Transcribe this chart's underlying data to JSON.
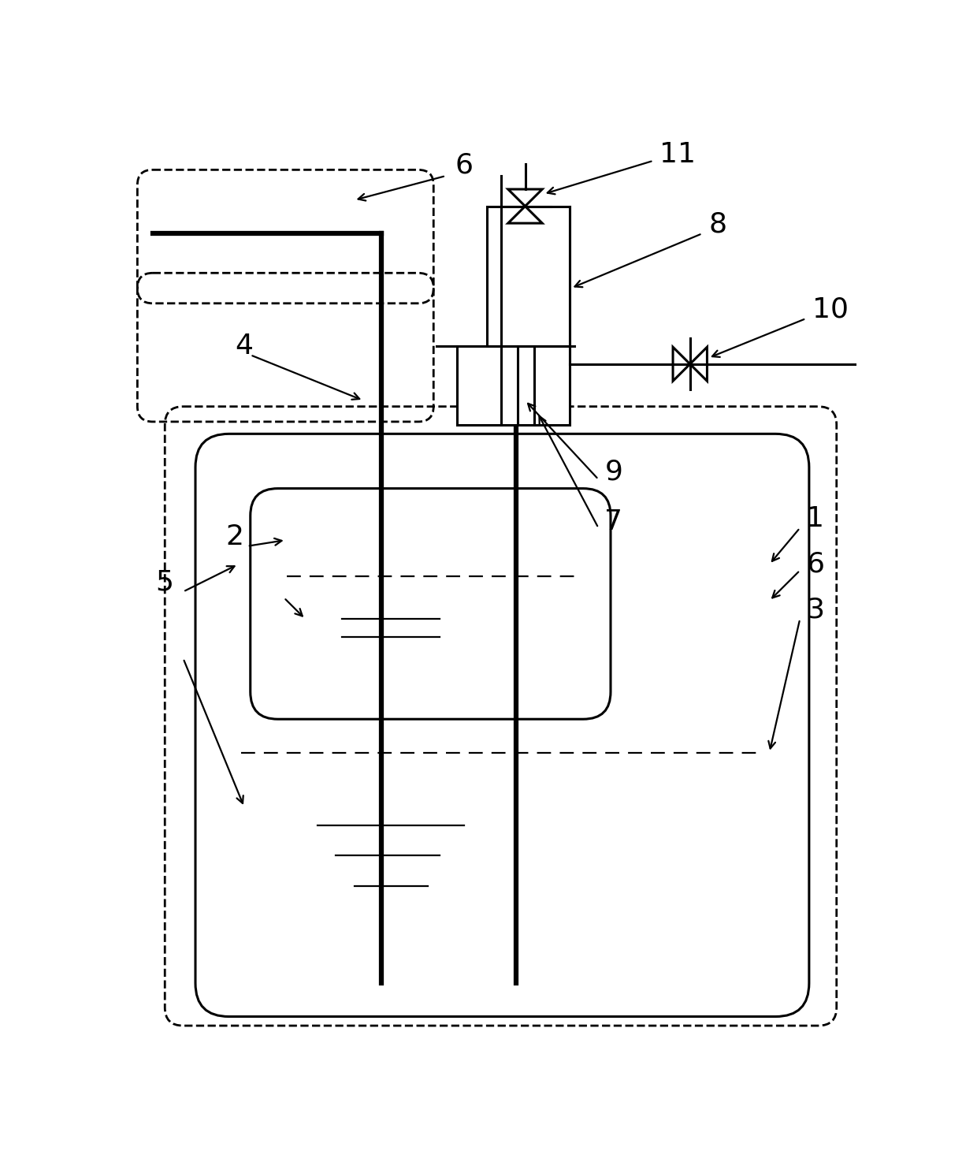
{
  "fig_width": 12.4,
  "fig_height": 14.74,
  "bg_color": "#ffffff",
  "lc": "#000000",
  "lw_thick": 4.5,
  "lw_medium": 2.2,
  "lw_thin": 1.6,
  "lw_dash": 2.0,
  "font_size": 26,
  "dash_pattern": [
    8,
    5
  ]
}
